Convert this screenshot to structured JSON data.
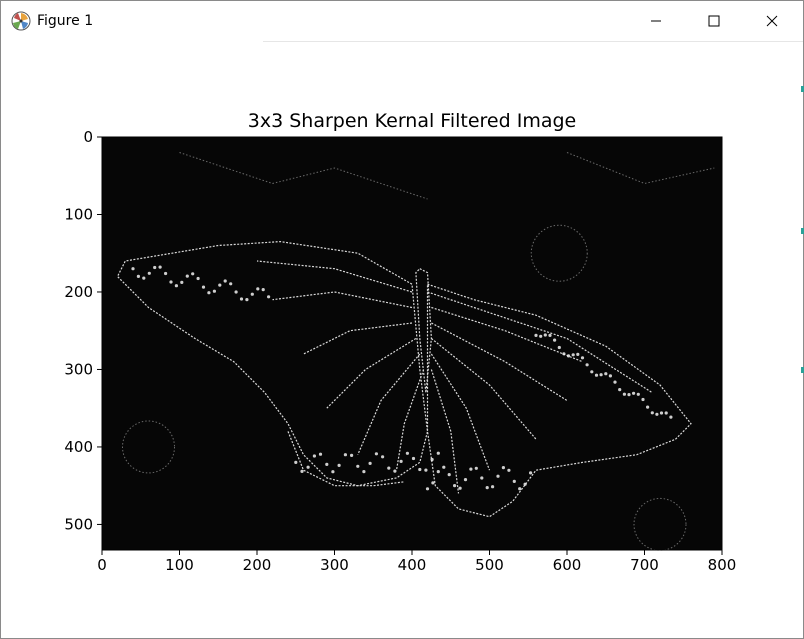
{
  "window": {
    "title": "Figure 1",
    "icons": {
      "app": "matplotlib-figure-icon",
      "minimize": "minimize-icon",
      "maximize": "maximize-icon",
      "close": "close-icon"
    }
  },
  "chart_data": {
    "type": "image",
    "title": "3x3 Sharpen Kernal Filtered Image",
    "xlabel": "",
    "ylabel": "",
    "xlim": [
      0,
      800
    ],
    "ylim": [
      533,
      0
    ],
    "xticks": [
      0,
      100,
      200,
      300,
      400,
      500,
      600,
      700,
      800
    ],
    "yticks": [
      0,
      100,
      200,
      300,
      400,
      500
    ],
    "xtick_labels": [
      "0",
      "100",
      "200",
      "300",
      "400",
      "500",
      "600",
      "700",
      "800"
    ],
    "ytick_labels": [
      "0",
      "100",
      "200",
      "300",
      "400",
      "500"
    ],
    "image_content": "edge-detected monarch butterfly on dark background",
    "colors": {
      "background": "#060606",
      "edges": "#f2f2f2"
    }
  }
}
